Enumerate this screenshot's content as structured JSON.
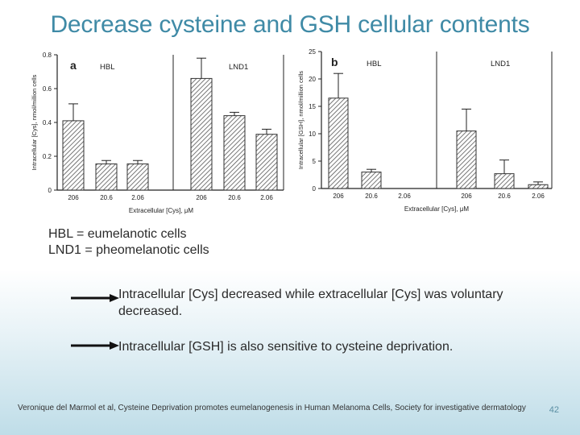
{
  "slide": {
    "title": "Decrease cysteine and GSH cellular contents",
    "legend": [
      "HBL = eumelanotic cells",
      "LND1 = pheomelanotic cells"
    ],
    "notes": [
      "Intracellular [Cys] decreased while extracellular [Cys] was voluntary decreased.",
      "Intracellular [GSH] is also sensitive to cysteine deprivation."
    ],
    "footer": "Veronique del Marmol et al, Cysteine Deprivation promotes eumelanogenesis in Human Melanoma Cells, Society for investigative dermatology",
    "page_number": "42"
  },
  "chart_data": [
    {
      "type": "bar",
      "panel_label": "a",
      "groups": [
        "HBL",
        "LND1"
      ],
      "categories": [
        "206",
        "20.6",
        "2.06"
      ],
      "series": [
        {
          "name": "HBL",
          "values": [
            0.41,
            0.155,
            0.155
          ],
          "errors": [
            0.1,
            0.02,
            0.02
          ]
        },
        {
          "name": "LND1",
          "values": [
            0.66,
            0.44,
            0.33
          ],
          "errors": [
            0.12,
            0.02,
            0.03
          ]
        }
      ],
      "xlabel": "Extracellular [Cys], μM",
      "ylabel": "Intracellular [Cys], nmol/million cells",
      "ylim": [
        0,
        0.8
      ],
      "yticks": [
        "0",
        "0.2",
        "0.4",
        "0.6",
        "0.8"
      ]
    },
    {
      "type": "bar",
      "panel_label": "b",
      "groups": [
        "HBL",
        "LND1"
      ],
      "categories": [
        "206",
        "20.6",
        "2.06"
      ],
      "series": [
        {
          "name": "HBL",
          "values": [
            16.5,
            3.0,
            0
          ],
          "errors": [
            4.5,
            0.5,
            0
          ]
        },
        {
          "name": "LND1",
          "values": [
            10.5,
            2.7,
            0.7
          ],
          "errors": [
            4.0,
            2.5,
            0.5
          ]
        }
      ],
      "xlabel": "Extracellular [Cys], μM",
      "ylabel": "Intracellular [GSH], nmol/million cells",
      "ylim": [
        0,
        25
      ],
      "yticks": [
        "0",
        "5",
        "10",
        "15",
        "20",
        "25"
      ]
    }
  ]
}
